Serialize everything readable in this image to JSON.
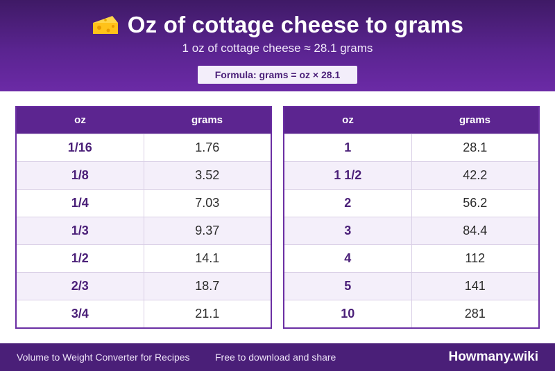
{
  "header": {
    "title": "Oz of cottage cheese to grams",
    "subtitle": "1 oz of cottage cheese ≈ 28.1 grams",
    "formula": "Formula: grams = oz × 28.1",
    "icon": "cheese-icon"
  },
  "table_left": {
    "col_oz": "oz",
    "col_grams": "grams",
    "rows": [
      {
        "oz": "1/16",
        "grams": "1.76"
      },
      {
        "oz": "1/8",
        "grams": "3.52"
      },
      {
        "oz": "1/4",
        "grams": "7.03"
      },
      {
        "oz": "1/3",
        "grams": "9.37"
      },
      {
        "oz": "1/2",
        "grams": "14.1"
      },
      {
        "oz": "2/3",
        "grams": "18.7"
      },
      {
        "oz": "3/4",
        "grams": "21.1"
      }
    ]
  },
  "table_right": {
    "col_oz": "oz",
    "col_grams": "grams",
    "rows": [
      {
        "oz": "1",
        "grams": "28.1"
      },
      {
        "oz": "1 1/2",
        "grams": "42.2"
      },
      {
        "oz": "2",
        "grams": "56.2"
      },
      {
        "oz": "3",
        "grams": "84.4"
      },
      {
        "oz": "4",
        "grams": "112"
      },
      {
        "oz": "5",
        "grams": "141"
      },
      {
        "oz": "10",
        "grams": "281"
      }
    ]
  },
  "footer": {
    "left": "Volume to Weight Converter for Recipes",
    "middle": "Free to download and share",
    "brand": "Howmany.wiki"
  },
  "colors": {
    "accent": "#5c2590",
    "dark": "#4a1f78",
    "row_alt": "#f4effa"
  }
}
